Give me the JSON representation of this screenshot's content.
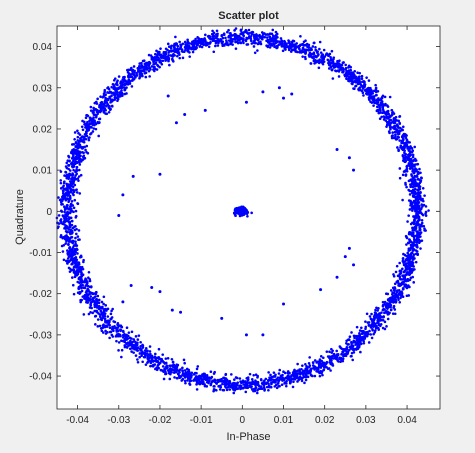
{
  "chart_data": {
    "type": "scatter",
    "title": "Scatter plot",
    "xlabel": "In-Phase",
    "ylabel": "Quadrature",
    "xlim": [
      -0.045,
      0.048
    ],
    "ylim": [
      -0.048,
      0.045
    ],
    "xticks": [
      -0.04,
      -0.03,
      -0.02,
      -0.01,
      0,
      0.01,
      0.02,
      0.03,
      0.04
    ],
    "yticks": [
      -0.04,
      -0.03,
      -0.02,
      -0.01,
      0,
      0.01,
      0.02,
      0.03,
      0.04
    ],
    "xtick_labels": [
      "-0.04",
      "-0.03",
      "-0.02",
      "-0.01",
      "0",
      "0.01",
      "0.02",
      "0.03",
      "0.04"
    ],
    "ytick_labels": [
      "-0.04",
      "-0.03",
      "-0.02",
      "-0.01",
      "0",
      "0.01",
      "0.02",
      "0.03",
      "0.04"
    ],
    "grid": false,
    "marker_color": "#0000ff",
    "series": [
      {
        "ring": {
          "center": [
            0.0,
            0.0
          ],
          "radius_x": 0.0425,
          "radius_y": 0.042,
          "band_width": 0.002
        },
        "center_cluster": {
          "center": [
            -0.0003,
            0.0
          ],
          "spread_x": 0.0012,
          "spread_y": 0.0008
        },
        "scattered_points": [
          [
            -0.018,
            0.028
          ],
          [
            -0.009,
            0.0245
          ],
          [
            -0.014,
            0.0235
          ],
          [
            -0.016,
            0.0215
          ],
          [
            0.001,
            0.0265
          ],
          [
            0.005,
            0.029
          ],
          [
            0.009,
            0.03
          ],
          [
            0.012,
            0.0285
          ],
          [
            0.01,
            0.0275
          ],
          [
            -0.0265,
            0.0085
          ],
          [
            -0.029,
            0.004
          ],
          [
            -0.03,
            -0.001
          ],
          [
            -0.02,
            0.009
          ],
          [
            0.023,
            0.015
          ],
          [
            0.026,
            0.013
          ],
          [
            0.027,
            0.01
          ],
          [
            -0.029,
            -0.022
          ],
          [
            -0.027,
            -0.018
          ],
          [
            -0.022,
            -0.0185
          ],
          [
            -0.02,
            -0.0195
          ],
          [
            -0.017,
            -0.024
          ],
          [
            -0.015,
            -0.0245
          ],
          [
            -0.005,
            -0.026
          ],
          [
            0.001,
            -0.03
          ],
          [
            0.005,
            -0.03
          ],
          [
            0.01,
            -0.0225
          ],
          [
            0.019,
            -0.019
          ],
          [
            0.023,
            -0.016
          ],
          [
            0.025,
            -0.011
          ],
          [
            0.026,
            -0.009
          ],
          [
            0.027,
            -0.013
          ]
        ]
      }
    ]
  }
}
